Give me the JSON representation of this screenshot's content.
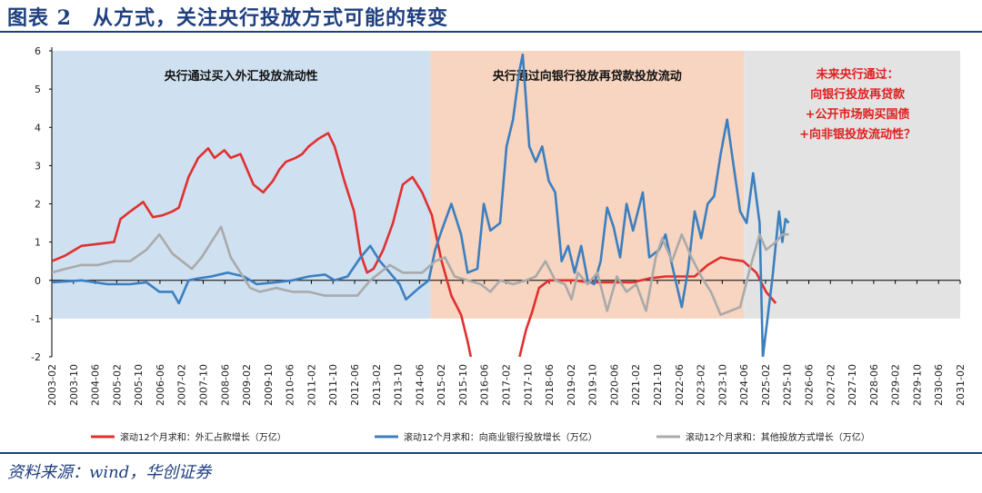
{
  "header": {
    "title": "图表 2　从方式，关注央行投放方式可能的转变"
  },
  "footer": {
    "source": "资料来源：wind，华创证券"
  },
  "chart_data": {
    "type": "line",
    "ylim": [
      -2,
      6
    ],
    "yticks": [
      "-2",
      "-1",
      "0",
      "1",
      "2",
      "3",
      "4",
      "5",
      "6"
    ],
    "xticks": [
      "2003-02",
      "2003-10",
      "2004-06",
      "2005-02",
      "2005-10",
      "2006-06",
      "2007-02",
      "2007-10",
      "2008-06",
      "2009-02",
      "2009-10",
      "2010-06",
      "2011-02",
      "2011-10",
      "2012-06",
      "2013-02",
      "2013-10",
      "2014-06",
      "2015-02",
      "2015-10",
      "2016-06",
      "2017-02",
      "2017-10",
      "2018-06",
      "2019-02",
      "2019-10",
      "2020-06",
      "2021-02",
      "2021-10",
      "2022-06",
      "2023-02",
      "2023-10",
      "2024-06",
      "2025-02",
      "2025-10",
      "2026-06",
      "2027-02",
      "2027-10",
      "2028-06",
      "2029-02",
      "2029-10",
      "2030-06",
      "2031-02"
    ],
    "regions": [
      {
        "label": "央行通过买入外汇投放流动性",
        "start": "2003-02",
        "end": "2014-10",
        "color": "#cfe0f0",
        "ymin": -1,
        "ymax": 6
      },
      {
        "label": "央行通过向银行投放再贷款投放流动",
        "start": "2014-10",
        "end": "2024-06",
        "color": "#f7d5c0",
        "ymin": -1,
        "ymax": 6
      },
      {
        "label_lines": [
          "未来央行通过：",
          "向银行投放再贷款",
          "+公开市场购买国债",
          "+向非银投放流动性？"
        ],
        "start": "2024-06",
        "end": "2031-02",
        "color": "#e3e3e3",
        "ymin": -1,
        "ymax": 6
      }
    ],
    "series": [
      {
        "name": "滚动12个月求和：外汇占款增长（万亿）",
        "color": "#e03030",
        "points": [
          [
            2003.08,
            0.5
          ],
          [
            2003.5,
            0.65
          ],
          [
            2004.0,
            0.9
          ],
          [
            2004.5,
            0.95
          ],
          [
            2005.0,
            1.0
          ],
          [
            2005.2,
            1.6
          ],
          [
            2005.5,
            1.8
          ],
          [
            2005.9,
            2.05
          ],
          [
            2006.2,
            1.65
          ],
          [
            2006.5,
            1.7
          ],
          [
            2006.8,
            1.8
          ],
          [
            2007.0,
            1.9
          ],
          [
            2007.3,
            2.7
          ],
          [
            2007.6,
            3.2
          ],
          [
            2007.9,
            3.45
          ],
          [
            2008.1,
            3.2
          ],
          [
            2008.4,
            3.4
          ],
          [
            2008.6,
            3.2
          ],
          [
            2008.9,
            3.3
          ],
          [
            2009.1,
            2.9
          ],
          [
            2009.3,
            2.5
          ],
          [
            2009.6,
            2.3
          ],
          [
            2009.9,
            2.6
          ],
          [
            2010.1,
            2.9
          ],
          [
            2010.3,
            3.1
          ],
          [
            2010.6,
            3.2
          ],
          [
            2010.8,
            3.3
          ],
          [
            2011.0,
            3.5
          ],
          [
            2011.3,
            3.7
          ],
          [
            2011.6,
            3.85
          ],
          [
            2011.8,
            3.5
          ],
          [
            2012.1,
            2.6
          ],
          [
            2012.4,
            1.8
          ],
          [
            2012.6,
            0.7
          ],
          [
            2012.8,
            0.2
          ],
          [
            2013.0,
            0.3
          ],
          [
            2013.3,
            0.8
          ],
          [
            2013.6,
            1.5
          ],
          [
            2013.9,
            2.5
          ],
          [
            2014.2,
            2.7
          ],
          [
            2014.5,
            2.3
          ],
          [
            2014.8,
            1.7
          ],
          [
            2015.1,
            0.5
          ],
          [
            2015.4,
            -0.4
          ],
          [
            2015.7,
            -0.9
          ],
          [
            2015.9,
            -1.6
          ],
          [
            2016.0,
            -2.0
          ]
        ]
      },
      {
        "name": "滚动12个月求和：外汇占款增长（万亿）",
        "color": "#e03030",
        "hide_legend": true,
        "points": [
          [
            2017.5,
            -2.0
          ],
          [
            2017.7,
            -1.3
          ],
          [
            2017.9,
            -0.8
          ],
          [
            2018.1,
            -0.2
          ],
          [
            2018.4,
            0.0
          ],
          [
            2018.8,
            0.0
          ],
          [
            2019.2,
            0.0
          ],
          [
            2019.6,
            -0.05
          ],
          [
            2020.0,
            -0.05
          ],
          [
            2020.5,
            -0.05
          ],
          [
            2021.0,
            -0.05
          ],
          [
            2021.5,
            0.05
          ],
          [
            2022.0,
            0.1
          ],
          [
            2022.5,
            0.1
          ],
          [
            2022.9,
            0.1
          ],
          [
            2023.3,
            0.4
          ],
          [
            2023.7,
            0.6
          ],
          [
            2024.0,
            0.55
          ],
          [
            2024.4,
            0.5
          ],
          [
            2024.8,
            0.2
          ],
          [
            2025.1,
            -0.3
          ],
          [
            2025.4,
            -0.6
          ]
        ]
      },
      {
        "name": "滚动12个月求和：向商业银行投放增长（万亿）",
        "color": "#3c7fc0",
        "points": [
          [
            2003.08,
            -0.05
          ],
          [
            2004.0,
            0.0
          ],
          [
            2004.8,
            -0.1
          ],
          [
            2005.5,
            -0.1
          ],
          [
            2006.0,
            -0.05
          ],
          [
            2006.4,
            -0.3
          ],
          [
            2006.8,
            -0.3
          ],
          [
            2007.0,
            -0.6
          ],
          [
            2007.3,
            0.0
          ],
          [
            2007.6,
            0.05
          ],
          [
            2008.0,
            0.1
          ],
          [
            2008.5,
            0.2
          ],
          [
            2009.0,
            0.1
          ],
          [
            2009.4,
            -0.1
          ],
          [
            2010.0,
            -0.05
          ],
          [
            2010.5,
            0.0
          ],
          [
            2011.0,
            0.1
          ],
          [
            2011.5,
            0.15
          ],
          [
            2011.8,
            0.0
          ],
          [
            2012.2,
            0.1
          ],
          [
            2012.6,
            0.6
          ],
          [
            2012.9,
            0.9
          ],
          [
            2013.2,
            0.5
          ],
          [
            2013.5,
            0.2
          ],
          [
            2013.8,
            -0.1
          ],
          [
            2014.0,
            -0.5
          ],
          [
            2014.4,
            -0.2
          ],
          [
            2014.7,
            0.0
          ],
          [
            2014.9,
            0.8
          ],
          [
            2015.1,
            1.3
          ],
          [
            2015.4,
            2.0
          ],
          [
            2015.7,
            1.2
          ],
          [
            2015.9,
            0.2
          ],
          [
            2016.2,
            0.3
          ],
          [
            2016.4,
            2.0
          ],
          [
            2016.6,
            1.3
          ],
          [
            2016.9,
            1.5
          ],
          [
            2017.1,
            3.5
          ],
          [
            2017.3,
            4.2
          ],
          [
            2017.5,
            5.5
          ],
          [
            2017.6,
            5.9
          ],
          [
            2017.8,
            3.5
          ],
          [
            2018.0,
            3.1
          ],
          [
            2018.2,
            3.5
          ],
          [
            2018.4,
            2.6
          ],
          [
            2018.6,
            2.3
          ],
          [
            2018.8,
            0.5
          ],
          [
            2019.0,
            0.9
          ],
          [
            2019.2,
            0.2
          ],
          [
            2019.4,
            0.9
          ],
          [
            2019.6,
            0.0
          ],
          [
            2019.8,
            -0.1
          ],
          [
            2020.0,
            0.5
          ],
          [
            2020.2,
            1.9
          ],
          [
            2020.4,
            1.4
          ],
          [
            2020.6,
            0.6
          ],
          [
            2020.8,
            2.0
          ],
          [
            2021.0,
            1.3
          ],
          [
            2021.3,
            2.3
          ],
          [
            2021.5,
            0.6
          ],
          [
            2021.8,
            0.8
          ],
          [
            2022.0,
            1.2
          ],
          [
            2022.2,
            0.4
          ],
          [
            2022.5,
            -0.7
          ],
          [
            2022.7,
            0.3
          ],
          [
            2022.9,
            1.8
          ],
          [
            2023.1,
            1.1
          ],
          [
            2023.3,
            2.0
          ],
          [
            2023.5,
            2.2
          ],
          [
            2023.7,
            3.3
          ],
          [
            2023.9,
            4.2
          ],
          [
            2024.1,
            3.0
          ],
          [
            2024.3,
            1.8
          ],
          [
            2024.5,
            1.5
          ],
          [
            2024.7,
            2.8
          ],
          [
            2024.9,
            1.5
          ],
          [
            2025.0,
            -2.0
          ],
          [
            2025.3,
            0.1
          ],
          [
            2025.5,
            1.8
          ],
          [
            2025.6,
            1.0
          ],
          [
            2025.7,
            1.6
          ],
          [
            2025.8,
            1.5
          ]
        ]
      },
      {
        "name": "滚动12个月求和：其他投放方式增长（万亿）",
        "color": "#aaaaaa",
        "points": [
          [
            2003.08,
            0.2
          ],
          [
            2003.5,
            0.3
          ],
          [
            2004.0,
            0.4
          ],
          [
            2004.5,
            0.4
          ],
          [
            2005.0,
            0.5
          ],
          [
            2005.5,
            0.5
          ],
          [
            2006.0,
            0.8
          ],
          [
            2006.4,
            1.2
          ],
          [
            2006.8,
            0.7
          ],
          [
            2007.1,
            0.5
          ],
          [
            2007.4,
            0.3
          ],
          [
            2007.7,
            0.6
          ],
          [
            2008.0,
            1.0
          ],
          [
            2008.3,
            1.4
          ],
          [
            2008.6,
            0.6
          ],
          [
            2008.9,
            0.2
          ],
          [
            2009.2,
            -0.2
          ],
          [
            2009.5,
            -0.3
          ],
          [
            2010.0,
            -0.2
          ],
          [
            2010.5,
            -0.3
          ],
          [
            2011.0,
            -0.3
          ],
          [
            2011.5,
            -0.4
          ],
          [
            2012.0,
            -0.4
          ],
          [
            2012.5,
            -0.4
          ],
          [
            2012.9,
            0.0
          ],
          [
            2013.2,
            0.2
          ],
          [
            2013.5,
            0.4
          ],
          [
            2013.9,
            0.2
          ],
          [
            2014.2,
            0.2
          ],
          [
            2014.5,
            0.2
          ],
          [
            2014.9,
            0.5
          ],
          [
            2015.2,
            0.6
          ],
          [
            2015.5,
            0.1
          ],
          [
            2015.9,
            0.0
          ],
          [
            2016.3,
            -0.1
          ],
          [
            2016.6,
            -0.3
          ],
          [
            2016.9,
            0.0
          ],
          [
            2017.3,
            -0.1
          ],
          [
            2017.7,
            0.0
          ],
          [
            2018.0,
            0.1
          ],
          [
            2018.3,
            0.5
          ],
          [
            2018.6,
            0.0
          ],
          [
            2018.9,
            -0.1
          ],
          [
            2019.1,
            -0.5
          ],
          [
            2019.3,
            0.2
          ],
          [
            2019.6,
            -0.1
          ],
          [
            2019.9,
            0.2
          ],
          [
            2020.2,
            -0.8
          ],
          [
            2020.5,
            0.1
          ],
          [
            2020.8,
            -0.3
          ],
          [
            2021.1,
            -0.1
          ],
          [
            2021.4,
            -0.8
          ],
          [
            2021.7,
            0.6
          ],
          [
            2021.9,
            1.1
          ],
          [
            2022.2,
            0.5
          ],
          [
            2022.5,
            1.2
          ],
          [
            2022.8,
            0.6
          ],
          [
            2023.1,
            0.1
          ],
          [
            2023.4,
            -0.3
          ],
          [
            2023.7,
            -0.9
          ],
          [
            2024.0,
            -0.8
          ],
          [
            2024.3,
            -0.7
          ],
          [
            2024.6,
            0.3
          ],
          [
            2024.9,
            1.2
          ],
          [
            2025.1,
            0.8
          ],
          [
            2025.4,
            1.0
          ],
          [
            2025.6,
            1.2
          ],
          [
            2025.8,
            1.2
          ]
        ]
      }
    ]
  }
}
